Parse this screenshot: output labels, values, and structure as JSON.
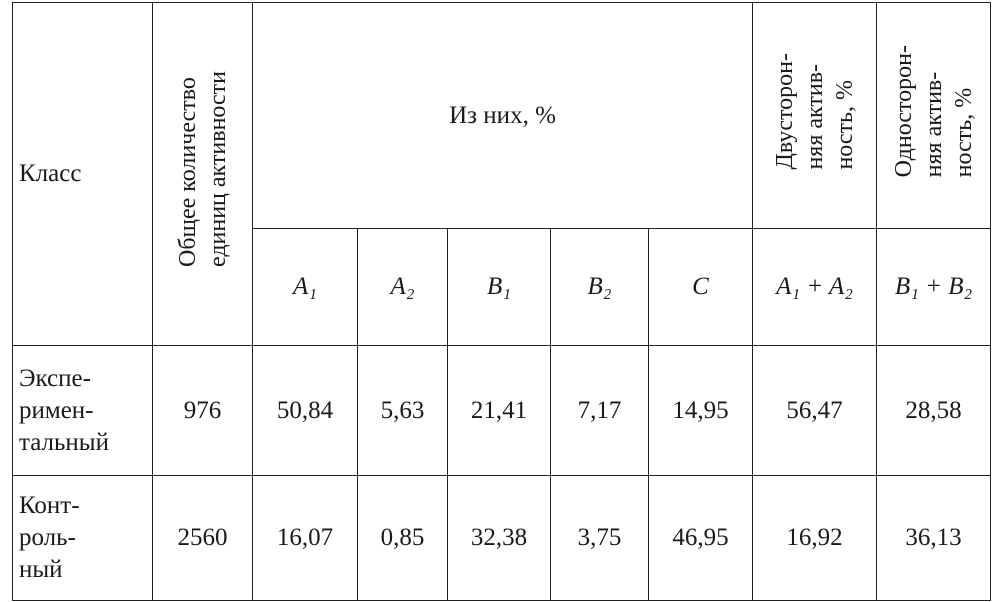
{
  "table": {
    "header": {
      "class": "Класс",
      "total": "Общее количество\nединиц активности",
      "group": "Из них, %",
      "bilateral": "Двусторон-\nняя актив-\nность, %",
      "unilateral": "Односторон-\nняя актив-\nность, %",
      "sub": [
        "A₁",
        "A₂",
        "B₁",
        "B₂",
        "C",
        "A₁ + A₂",
        "B₁ + B₂"
      ]
    },
    "rows": [
      [
        "Экспе-\nримен-\nтальный",
        "976",
        "50,84",
        "5,63",
        "21,41",
        "7,17",
        "14,95",
        "56,47",
        "28,58"
      ],
      [
        "Конт-\nроль-\nный",
        "2560",
        "16,07",
        "0,85",
        "32,38",
        "3,75",
        "46,95",
        "16,92",
        "36,13"
      ]
    ]
  }
}
